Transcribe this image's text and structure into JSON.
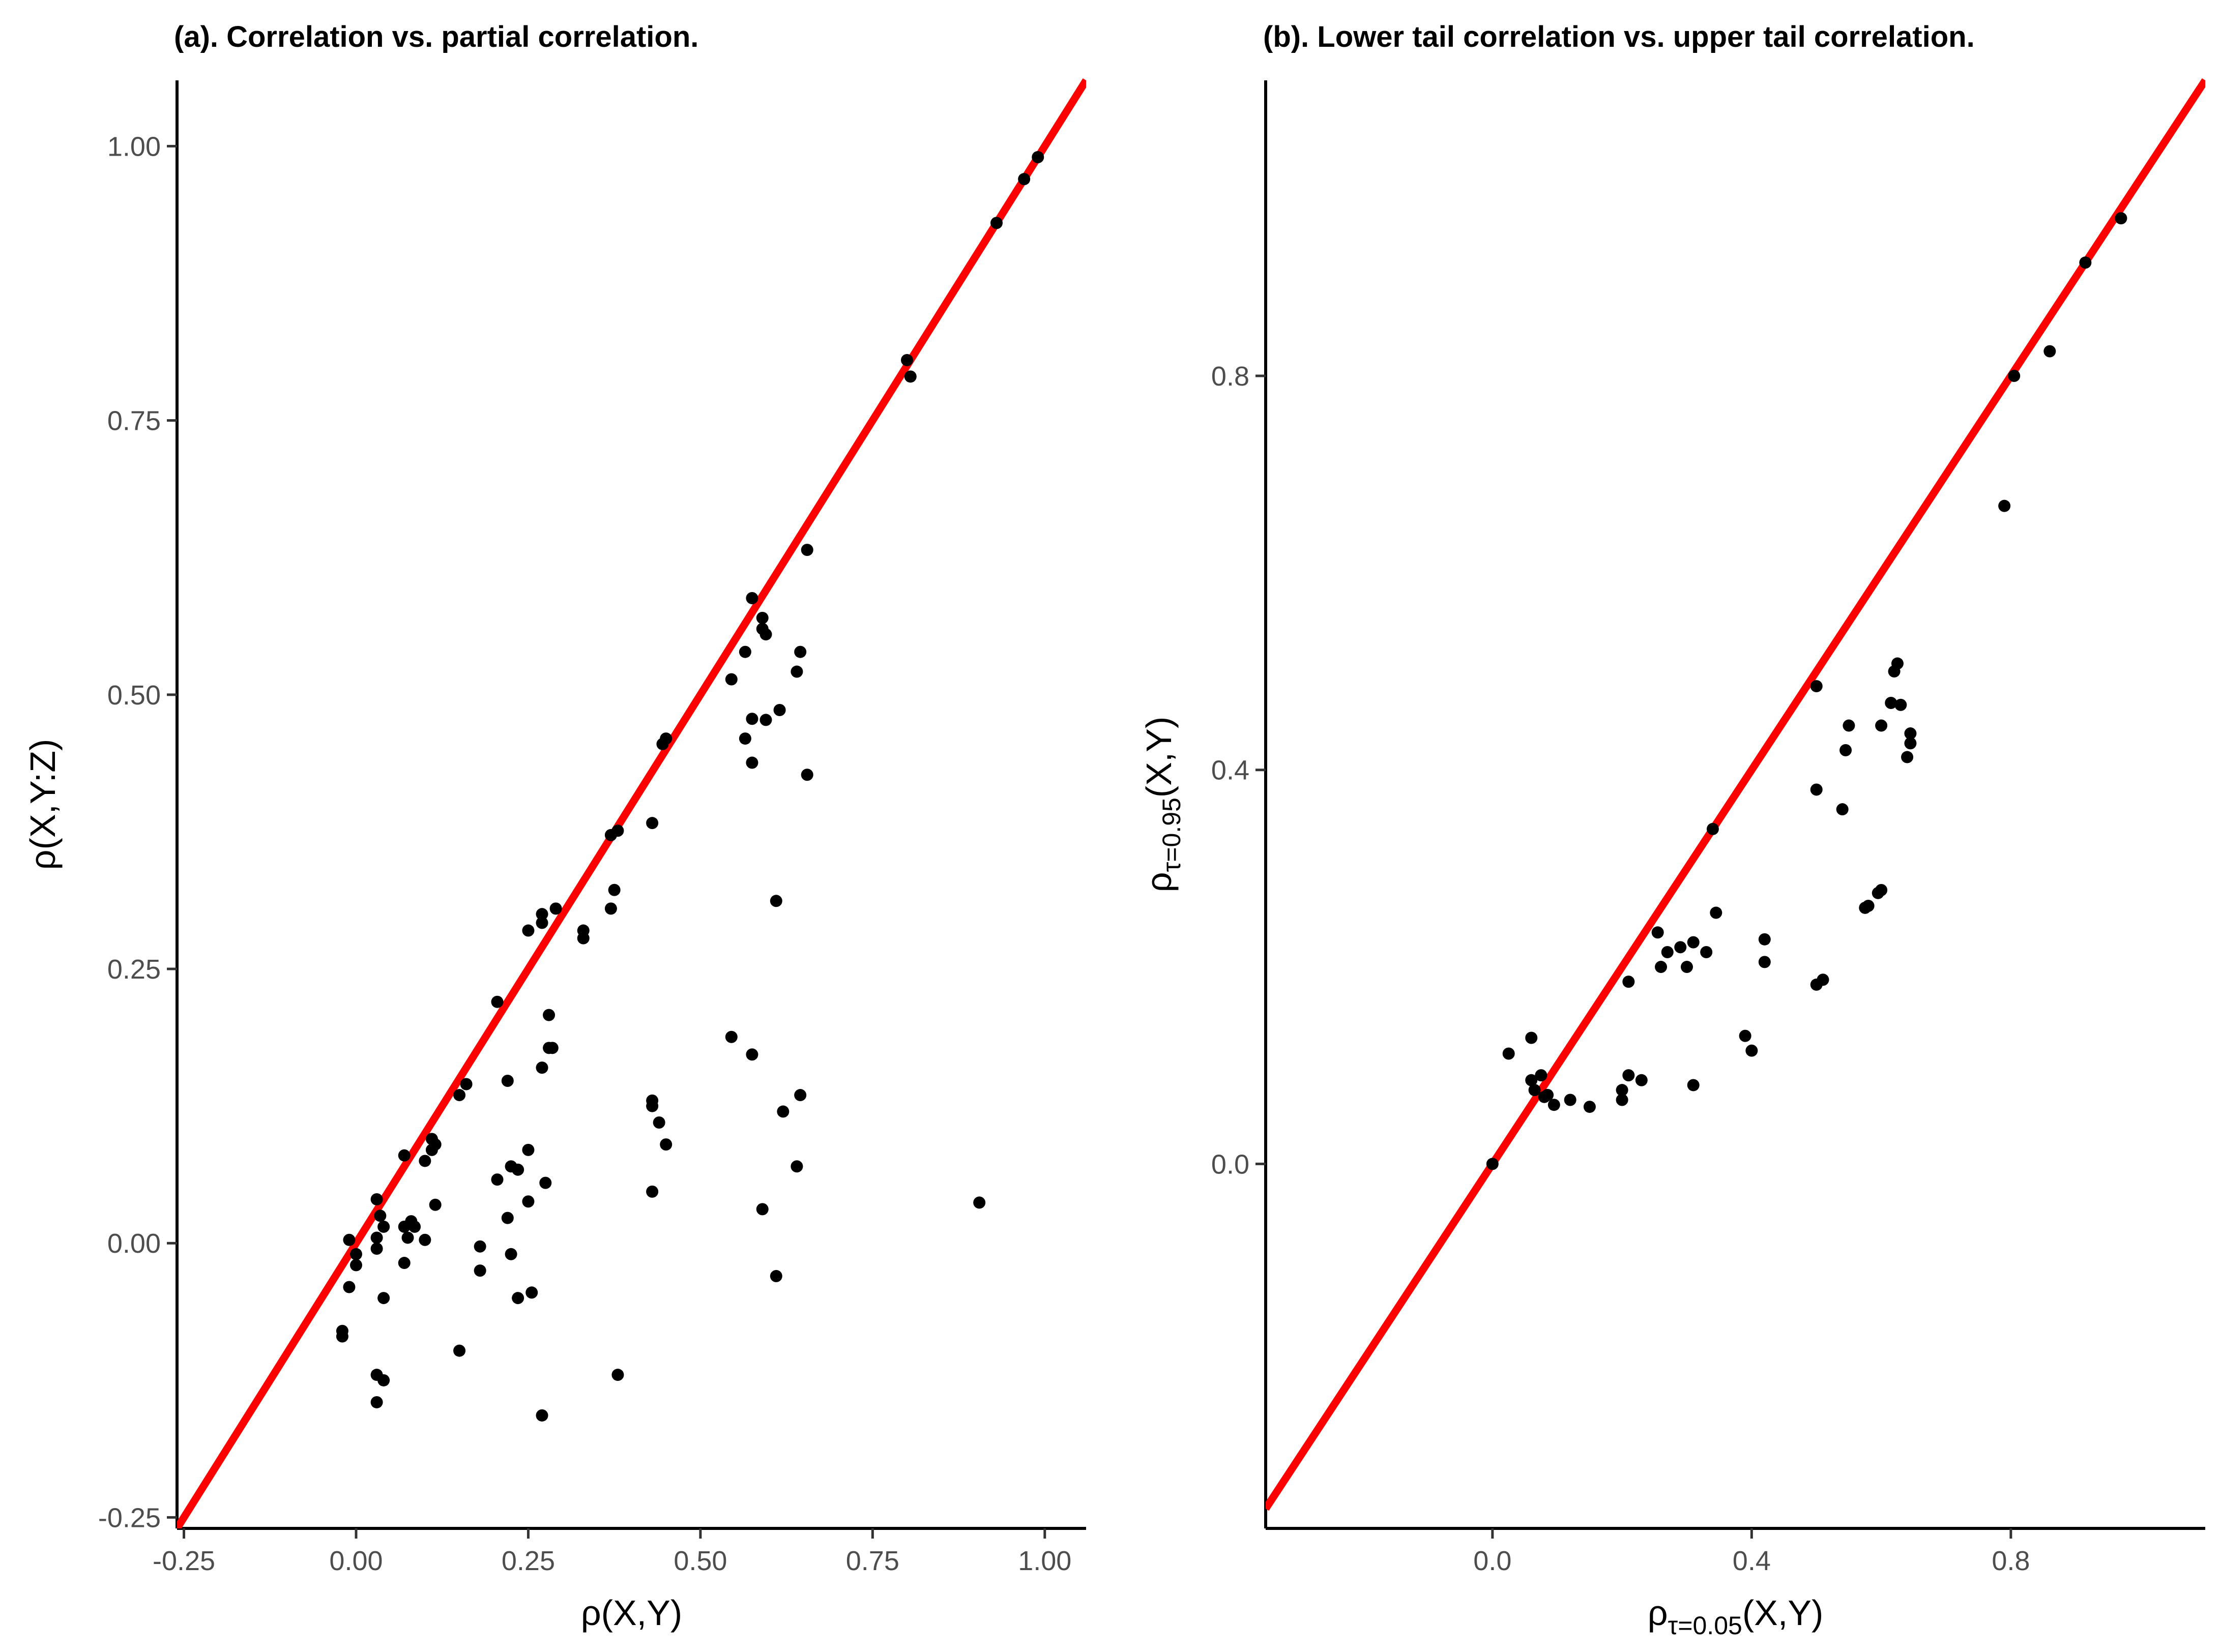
{
  "chart_data": [
    {
      "type": "scatter",
      "title": "(a). Correlation vs. partial correlation.",
      "xlabel": "ρ(X,Y)",
      "ylabel": "ρ(X,Y:Z)",
      "xlim": [
        -0.26,
        1.06
      ],
      "ylim": [
        -0.26,
        1.06
      ],
      "xticks": [
        -0.25,
        0.0,
        0.25,
        0.5,
        0.75,
        1.0
      ],
      "xtick_labels": [
        "-0.25",
        "0.00",
        "0.25",
        "0.50",
        "0.75",
        "1.00"
      ],
      "yticks": [
        -0.25,
        0.0,
        0.25,
        0.5,
        0.75,
        1.0
      ],
      "ytick_labels": [
        "-0.25",
        "0.00",
        "0.25",
        "0.50",
        "0.75",
        "1.00"
      ],
      "grid": false,
      "reference_line": {
        "type": "identity",
        "slope": 1,
        "intercept": 0,
        "color": "#ff0000"
      },
      "point_color": "#000000",
      "points": [
        [
          -0.02,
          -0.08
        ],
        [
          -0.02,
          -0.085
        ],
        [
          -0.01,
          0.003
        ],
        [
          -0.01,
          -0.04
        ],
        [
          0.0,
          -0.01
        ],
        [
          0.0,
          -0.02
        ],
        [
          0.03,
          0.04
        ],
        [
          0.03,
          0.005
        ],
        [
          0.03,
          -0.005
        ],
        [
          0.035,
          0.025
        ],
        [
          0.04,
          0.015
        ],
        [
          0.04,
          -0.05
        ],
        [
          0.03,
          -0.12
        ],
        [
          0.04,
          -0.125
        ],
        [
          0.03,
          -0.145
        ],
        [
          0.07,
          0.08
        ],
        [
          0.07,
          0.015
        ],
        [
          0.07,
          -0.018
        ],
        [
          0.075,
          0.005
        ],
        [
          0.08,
          0.02
        ],
        [
          0.085,
          0.015
        ],
        [
          0.1,
          0.075
        ],
        [
          0.1,
          0.003
        ],
        [
          0.11,
          0.095
        ],
        [
          0.11,
          0.085
        ],
        [
          0.115,
          0.09
        ],
        [
          0.115,
          0.035
        ],
        [
          0.15,
          0.135
        ],
        [
          0.16,
          0.145
        ],
        [
          0.15,
          -0.098
        ],
        [
          0.18,
          -0.003
        ],
        [
          0.18,
          -0.025
        ],
        [
          0.205,
          0.22
        ],
        [
          0.205,
          0.058
        ],
        [
          0.22,
          0.148
        ],
        [
          0.22,
          0.023
        ],
        [
          0.225,
          -0.01
        ],
        [
          0.225,
          0.07
        ],
        [
          0.235,
          0.067
        ],
        [
          0.235,
          -0.05
        ],
        [
          0.25,
          0.285
        ],
        [
          0.25,
          0.085
        ],
        [
          0.25,
          0.038
        ],
        [
          0.255,
          -0.045
        ],
        [
          0.27,
          0.292
        ],
        [
          0.27,
          0.3
        ],
        [
          0.27,
          0.16
        ],
        [
          0.28,
          0.208
        ],
        [
          0.28,
          0.178
        ],
        [
          0.285,
          0.178
        ],
        [
          0.275,
          0.055
        ],
        [
          0.27,
          -0.157
        ],
        [
          0.29,
          0.305
        ],
        [
          0.33,
          0.278
        ],
        [
          0.33,
          0.285
        ],
        [
          0.37,
          0.305
        ],
        [
          0.375,
          0.322
        ],
        [
          0.37,
          0.372
        ],
        [
          0.38,
          0.376
        ],
        [
          0.38,
          -0.12
        ],
        [
          0.43,
          0.383
        ],
        [
          0.43,
          0.13
        ],
        [
          0.43,
          0.125
        ],
        [
          0.44,
          0.11
        ],
        [
          0.43,
          0.047
        ],
        [
          0.445,
          0.455
        ],
        [
          0.45,
          0.46
        ],
        [
          0.45,
          0.09
        ],
        [
          0.545,
          0.514
        ],
        [
          0.545,
          0.188
        ],
        [
          0.565,
          0.539
        ],
        [
          0.565,
          0.46
        ],
        [
          0.575,
          0.588
        ],
        [
          0.575,
          0.438
        ],
        [
          0.575,
          0.478
        ],
        [
          0.575,
          0.172
        ],
        [
          0.59,
          0.57
        ],
        [
          0.59,
          0.56
        ],
        [
          0.595,
          0.555
        ],
        [
          0.595,
          0.477
        ],
        [
          0.59,
          0.031
        ],
        [
          0.61,
          0.312
        ],
        [
          0.615,
          0.486
        ],
        [
          0.62,
          0.12
        ],
        [
          0.61,
          -0.03
        ],
        [
          0.64,
          0.521
        ],
        [
          0.645,
          0.539
        ],
        [
          0.645,
          0.135
        ],
        [
          0.64,
          0.07
        ],
        [
          0.655,
          0.632
        ],
        [
          0.655,
          0.427
        ],
        [
          0.8,
          0.805
        ],
        [
          0.805,
          0.79
        ],
        [
          0.905,
          0.037
        ],
        [
          0.93,
          0.93
        ],
        [
          0.97,
          0.97
        ],
        [
          0.99,
          0.99
        ]
      ]
    },
    {
      "type": "scatter",
      "title": "(b). Lower tail correlation vs. upper tail correlation.",
      "xlabel": {
        "main": "ρ",
        "sub": "τ=0.05",
        "suffix": "(X,Y)"
      },
      "ylabel": {
        "main": "ρ",
        "sub": "τ=0.95",
        "suffix": "(X,Y)"
      },
      "xlim": [
        -0.35,
        1.1
      ],
      "ylim": [
        -0.37,
        1.1
      ],
      "xticks": [
        0.0,
        0.4,
        0.8
      ],
      "xtick_labels": [
        "0.0",
        "0.4",
        "0.8"
      ],
      "yticks": [
        0.0,
        0.4,
        0.8
      ],
      "ytick_labels": [
        "0.0",
        "0.4",
        "0.8"
      ],
      "grid": false,
      "reference_line": {
        "type": "identity",
        "slope": 1,
        "intercept": 0,
        "color": "#ff0000"
      },
      "point_color": "#000000",
      "points": [
        [
          0.0,
          0.0
        ],
        [
          0.025,
          0.112
        ],
        [
          0.06,
          0.128
        ],
        [
          0.06,
          0.085
        ],
        [
          0.065,
          0.075
        ],
        [
          0.075,
          0.09
        ],
        [
          0.08,
          0.068
        ],
        [
          0.085,
          0.07
        ],
        [
          0.095,
          0.06
        ],
        [
          0.12,
          0.065
        ],
        [
          0.15,
          0.058
        ],
        [
          0.2,
          0.065
        ],
        [
          0.2,
          0.075
        ],
        [
          0.21,
          0.09
        ],
        [
          0.21,
          0.185
        ],
        [
          0.23,
          0.085
        ],
        [
          0.255,
          0.235
        ],
        [
          0.26,
          0.2
        ],
        [
          0.27,
          0.215
        ],
        [
          0.29,
          0.22
        ],
        [
          0.3,
          0.2
        ],
        [
          0.31,
          0.225
        ],
        [
          0.31,
          0.08
        ],
        [
          0.33,
          0.215
        ],
        [
          0.34,
          0.34
        ],
        [
          0.345,
          0.255
        ],
        [
          0.39,
          0.13
        ],
        [
          0.4,
          0.115
        ],
        [
          0.42,
          0.205
        ],
        [
          0.42,
          0.228
        ],
        [
          0.5,
          0.38
        ],
        [
          0.5,
          0.485
        ],
        [
          0.5,
          0.182
        ],
        [
          0.51,
          0.187
        ],
        [
          0.54,
          0.36
        ],
        [
          0.545,
          0.42
        ],
        [
          0.55,
          0.445
        ],
        [
          0.575,
          0.26
        ],
        [
          0.58,
          0.262
        ],
        [
          0.595,
          0.275
        ],
        [
          0.6,
          0.278
        ],
        [
          0.6,
          0.445
        ],
        [
          0.615,
          0.468
        ],
        [
          0.62,
          0.5
        ],
        [
          0.625,
          0.508
        ],
        [
          0.63,
          0.466
        ],
        [
          0.64,
          0.413
        ],
        [
          0.645,
          0.437
        ],
        [
          0.645,
          0.427
        ],
        [
          0.79,
          0.668
        ],
        [
          0.805,
          0.8
        ],
        [
          0.86,
          0.825
        ],
        [
          0.915,
          0.915
        ],
        [
          0.97,
          0.96
        ]
      ]
    }
  ]
}
